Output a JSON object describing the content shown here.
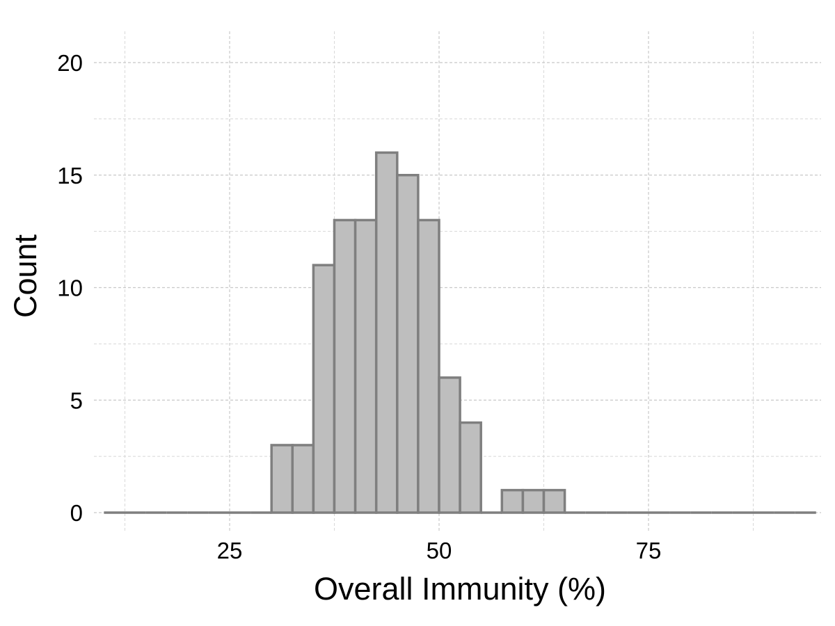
{
  "chart_data": {
    "type": "bar",
    "title": "",
    "xlabel": "Overall Immunity (%)",
    "ylabel": "Count",
    "xlim": [
      10,
      95
    ],
    "ylim": [
      0,
      21.5
    ],
    "x_ticks": [
      25,
      50,
      75
    ],
    "y_ticks": [
      0,
      5,
      10,
      15,
      20
    ],
    "bin_width": 2.5,
    "bins": [
      {
        "x0": 10.0,
        "x1": 12.5,
        "count": 0
      },
      {
        "x0": 12.5,
        "x1": 15.0,
        "count": 0
      },
      {
        "x0": 15.0,
        "x1": 17.5,
        "count": 0
      },
      {
        "x0": 17.5,
        "x1": 20.0,
        "count": 0
      },
      {
        "x0": 20.0,
        "x1": 22.5,
        "count": 0
      },
      {
        "x0": 22.5,
        "x1": 25.0,
        "count": 0
      },
      {
        "x0": 25.0,
        "x1": 27.5,
        "count": 0
      },
      {
        "x0": 27.5,
        "x1": 30.0,
        "count": 0
      },
      {
        "x0": 30.0,
        "x1": 32.5,
        "count": 3
      },
      {
        "x0": 32.5,
        "x1": 35.0,
        "count": 3
      },
      {
        "x0": 35.0,
        "x1": 37.5,
        "count": 11
      },
      {
        "x0": 37.5,
        "x1": 40.0,
        "count": 13
      },
      {
        "x0": 40.0,
        "x1": 42.5,
        "count": 13
      },
      {
        "x0": 42.5,
        "x1": 45.0,
        "count": 16
      },
      {
        "x0": 45.0,
        "x1": 47.5,
        "count": 15
      },
      {
        "x0": 47.5,
        "x1": 50.0,
        "count": 13
      },
      {
        "x0": 50.0,
        "x1": 52.5,
        "count": 6
      },
      {
        "x0": 52.5,
        "x1": 55.0,
        "count": 4
      },
      {
        "x0": 55.0,
        "x1": 57.5,
        "count": 0
      },
      {
        "x0": 57.5,
        "x1": 60.0,
        "count": 1
      },
      {
        "x0": 60.0,
        "x1": 62.5,
        "count": 1
      },
      {
        "x0": 62.5,
        "x1": 65.0,
        "count": 1
      },
      {
        "x0": 65.0,
        "x1": 67.5,
        "count": 0
      },
      {
        "x0": 67.5,
        "x1": 70.0,
        "count": 0
      },
      {
        "x0": 70.0,
        "x1": 72.5,
        "count": 0
      },
      {
        "x0": 72.5,
        "x1": 75.0,
        "count": 0
      },
      {
        "x0": 75.0,
        "x1": 77.5,
        "count": 0
      },
      {
        "x0": 77.5,
        "x1": 80.0,
        "count": 0
      },
      {
        "x0": 80.0,
        "x1": 82.5,
        "count": 0
      },
      {
        "x0": 82.5,
        "x1": 85.0,
        "count": 0
      },
      {
        "x0": 85.0,
        "x1": 87.5,
        "count": 0
      },
      {
        "x0": 87.5,
        "x1": 90.0,
        "count": 0
      },
      {
        "x0": 90.0,
        "x1": 92.5,
        "count": 0
      },
      {
        "x0": 92.5,
        "x1": 95.0,
        "count": 0
      }
    ],
    "grid": true,
    "grid_style": "dashed",
    "legend": "none",
    "bar_fill_color": "#bebebe",
    "bar_edge_color": "#7f7f7f"
  }
}
